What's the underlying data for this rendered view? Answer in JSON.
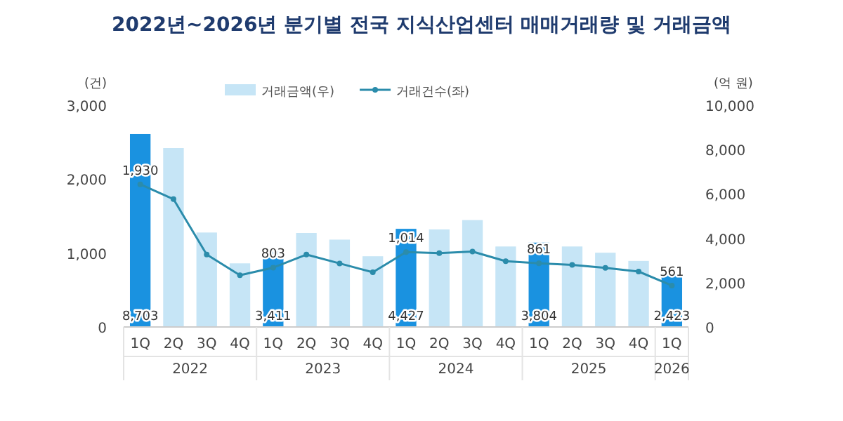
{
  "chart_data": {
    "type": "bar",
    "title": "2022년~2026년 분기별 전국 지식산업센터 매매거래량 및 거래금액",
    "categories": [
      "1Q",
      "2Q",
      "3Q",
      "4Q",
      "1Q",
      "2Q",
      "3Q",
      "4Q",
      "1Q",
      "2Q",
      "3Q",
      "4Q",
      "1Q",
      "2Q",
      "3Q",
      "4Q",
      "1Q"
    ],
    "annotations": [
      "2022",
      "2023",
      "2024",
      "2025",
      "2026"
    ],
    "ylabel": "(건)",
    "y2label": "(억 원)",
    "ylim": [
      0,
      3000
    ],
    "yticks": [
      0,
      {
        "value": 1000,
        "label": "1,000"
      },
      {
        "value": 2000,
        "label": "2,000"
      },
      {
        "value": 3000,
        "label": "3,000"
      }
    ],
    "y2lim": [
      0,
      10000
    ],
    "y2ticks": [
      0,
      {
        "value": 2000,
        "label": "2,000"
      },
      {
        "value": 4000,
        "label": "4,000"
      },
      {
        "value": 6000,
        "label": "6,000"
      },
      {
        "value": 8000,
        "label": "8,000"
      },
      {
        "value": 10000,
        "label": "10,000"
      }
    ],
    "legend": "top",
    "series": [
      {
        "axis": "y2",
        "name": "거래금액(우)",
        "color": "#c6e5f6",
        "colors": [
          "#1a92e0",
          "#c6e5f6",
          "#c6e5f6",
          "#c6e5f6",
          "#1a92e0",
          "#c6e5f6",
          "#c6e5f6",
          "#c6e5f6",
          "#1a92e0",
          "#c6e5f6",
          "#c6e5f6",
          "#c6e5f6",
          "#1a92e0",
          "#c6e5f6",
          "#c6e5f6",
          "#c6e5f6",
          "#1a92e0"
        ],
        "values": [
          8703,
          8070,
          4260,
          2870,
          3411,
          4240,
          3940,
          3190,
          4427,
          4400,
          4820,
          3630,
          3804,
          3630,
          3350,
          2980,
          2423
        ],
        "value_labels": [
          "8,703",
          null,
          null,
          null,
          "3,411",
          null,
          null,
          null,
          "4,427",
          null,
          null,
          null,
          "3,804",
          null,
          null,
          null,
          "2,423"
        ]
      },
      {
        "type": "line",
        "axis": "y",
        "name": "거래건수(좌)",
        "color": "#2b8cab",
        "marker": "circle",
        "values": [
          1930,
          1730,
          980,
          700,
          803,
          980,
          860,
          740,
          1014,
          1000,
          1020,
          890,
          861,
          840,
          800,
          750,
          561
        ],
        "value_labels": [
          "1,930",
          null,
          null,
          null,
          "803",
          null,
          null,
          null,
          "1,014",
          null,
          null,
          null,
          "861",
          null,
          null,
          null,
          "561"
        ]
      }
    ]
  }
}
